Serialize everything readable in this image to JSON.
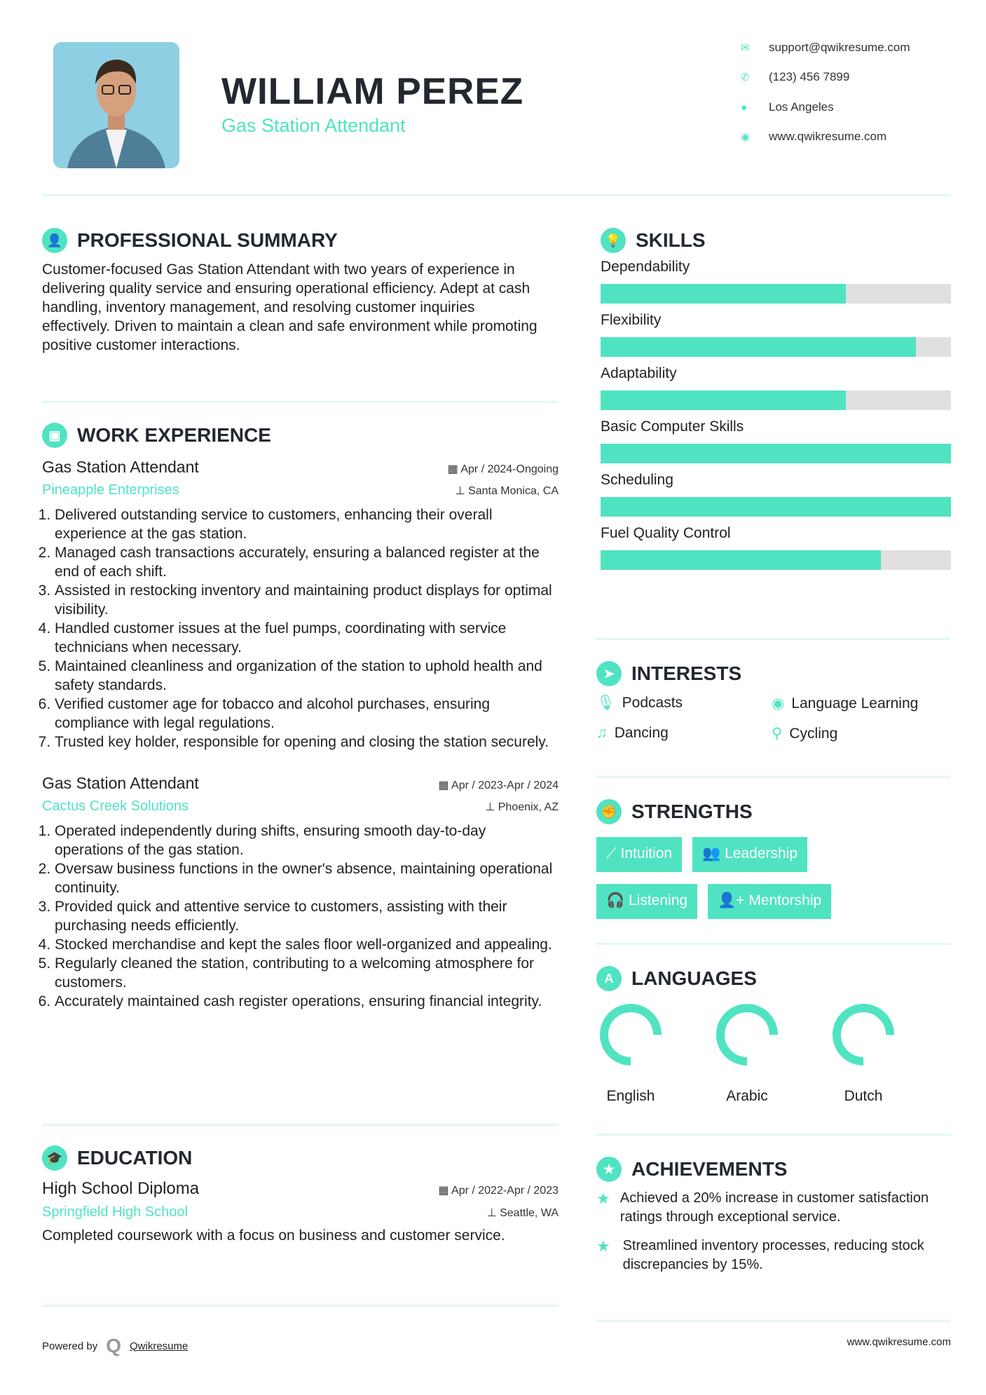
{
  "header": {
    "name": "WILLIAM PEREZ",
    "title": "Gas Station Attendant",
    "contacts": [
      {
        "icon": "envelope-icon",
        "text": "support@qwikresume.com"
      },
      {
        "icon": "phone-icon",
        "text": "(123) 456 7899"
      },
      {
        "icon": "map-pin-icon",
        "text": "Los Angeles"
      },
      {
        "icon": "globe-icon",
        "text": "www.qwikresume.com"
      }
    ]
  },
  "summary": {
    "heading": "PROFESSIONAL SUMMARY",
    "text": "Customer-focused Gas Station Attendant with two years of experience in delivering quality service and ensuring operational efficiency. Adept at cash handling, inventory management, and resolving customer inquiries effectively. Driven to maintain a clean and safe environment while promoting positive customer interactions."
  },
  "experience": {
    "heading": "WORK EXPERIENCE",
    "jobs": [
      {
        "title": "Gas Station Attendant",
        "date": "Apr / 2024-Ongoing",
        "company": "Pineapple Enterprises",
        "location": "Santa Monica, CA",
        "bullets": [
          "Delivered outstanding service to customers, enhancing their overall experience at the gas station.",
          "Managed cash transactions accurately, ensuring a balanced register at the end of each shift.",
          "Assisted in restocking inventory and maintaining product displays for optimal visibility.",
          "Handled customer issues at the fuel pumps, coordinating with service technicians when necessary.",
          "Maintained cleanliness and organization of the station to uphold health and safety standards.",
          "Verified customer age for tobacco and alcohol purchases, ensuring compliance with legal regulations.",
          "Trusted key holder, responsible for opening and closing the station securely."
        ]
      },
      {
        "title": "Gas Station Attendant",
        "date": "Apr / 2023-Apr / 2024",
        "company": "Cactus Creek Solutions",
        "location": "Phoenix, AZ",
        "bullets": [
          "Operated independently during shifts, ensuring smooth day-to-day operations of the gas station.",
          "Oversaw business functions in the owner's absence, maintaining operational continuity.",
          "Provided quick and attentive service to customers, assisting with their purchasing needs efficiently.",
          "Stocked merchandise and kept the sales floor well-organized and appealing.",
          "Regularly cleaned the station, contributing to a welcoming atmosphere for customers.",
          "Accurately maintained cash register operations, ensuring financial integrity."
        ]
      }
    ]
  },
  "education": {
    "heading": "EDUCATION",
    "degree": "High School Diploma",
    "date": "Apr / 2022-Apr / 2023",
    "school": "Springfield High School",
    "location": "Seattle, WA",
    "text": "Completed coursework with a focus on business and customer service."
  },
  "skills": {
    "heading": "SKILLS",
    "items": [
      {
        "name": "Dependability",
        "level": 70
      },
      {
        "name": "Flexibility",
        "level": 90
      },
      {
        "name": "Adaptability",
        "level": 70
      },
      {
        "name": "Basic Computer Skills",
        "level": 100
      },
      {
        "name": "Scheduling",
        "level": 100
      },
      {
        "name": "Fuel Quality Control",
        "level": 80
      }
    ]
  },
  "interests": {
    "heading": "INTERESTS",
    "items": [
      {
        "icon": "microphone-icon",
        "label": "Podcasts"
      },
      {
        "icon": "globe-icon",
        "label": "Language Learning"
      },
      {
        "icon": "music-icon",
        "label": "Dancing"
      },
      {
        "icon": "bicycle-icon",
        "label": "Cycling"
      }
    ]
  },
  "strengths": {
    "heading": "STRENGTHS",
    "items": [
      {
        "icon": "magic-wand-icon",
        "label": "Intuition"
      },
      {
        "icon": "users-icon",
        "label": "Leadership"
      },
      {
        "icon": "headphones-icon",
        "label": "Listening"
      },
      {
        "icon": "user-plus-icon",
        "label": "Mentorship"
      }
    ]
  },
  "languages": {
    "heading": "LANGUAGES",
    "items": [
      {
        "name": "English",
        "level": 75
      },
      {
        "name": "Arabic",
        "level": 75
      },
      {
        "name": "Dutch",
        "level": 75
      }
    ]
  },
  "achievements": {
    "heading": "ACHIEVEMENTS",
    "items": [
      "Achieved a 20% increase in customer satisfaction ratings through exceptional service.",
      "Streamlined inventory processes, reducing stock discrepancies by 15%."
    ]
  },
  "footer": {
    "powered": "Powered by",
    "brand": "Qwikresume",
    "url": "www.qwikresume.com"
  },
  "colors": {
    "accent": "#50e3c2",
    "heading": "#232830"
  }
}
